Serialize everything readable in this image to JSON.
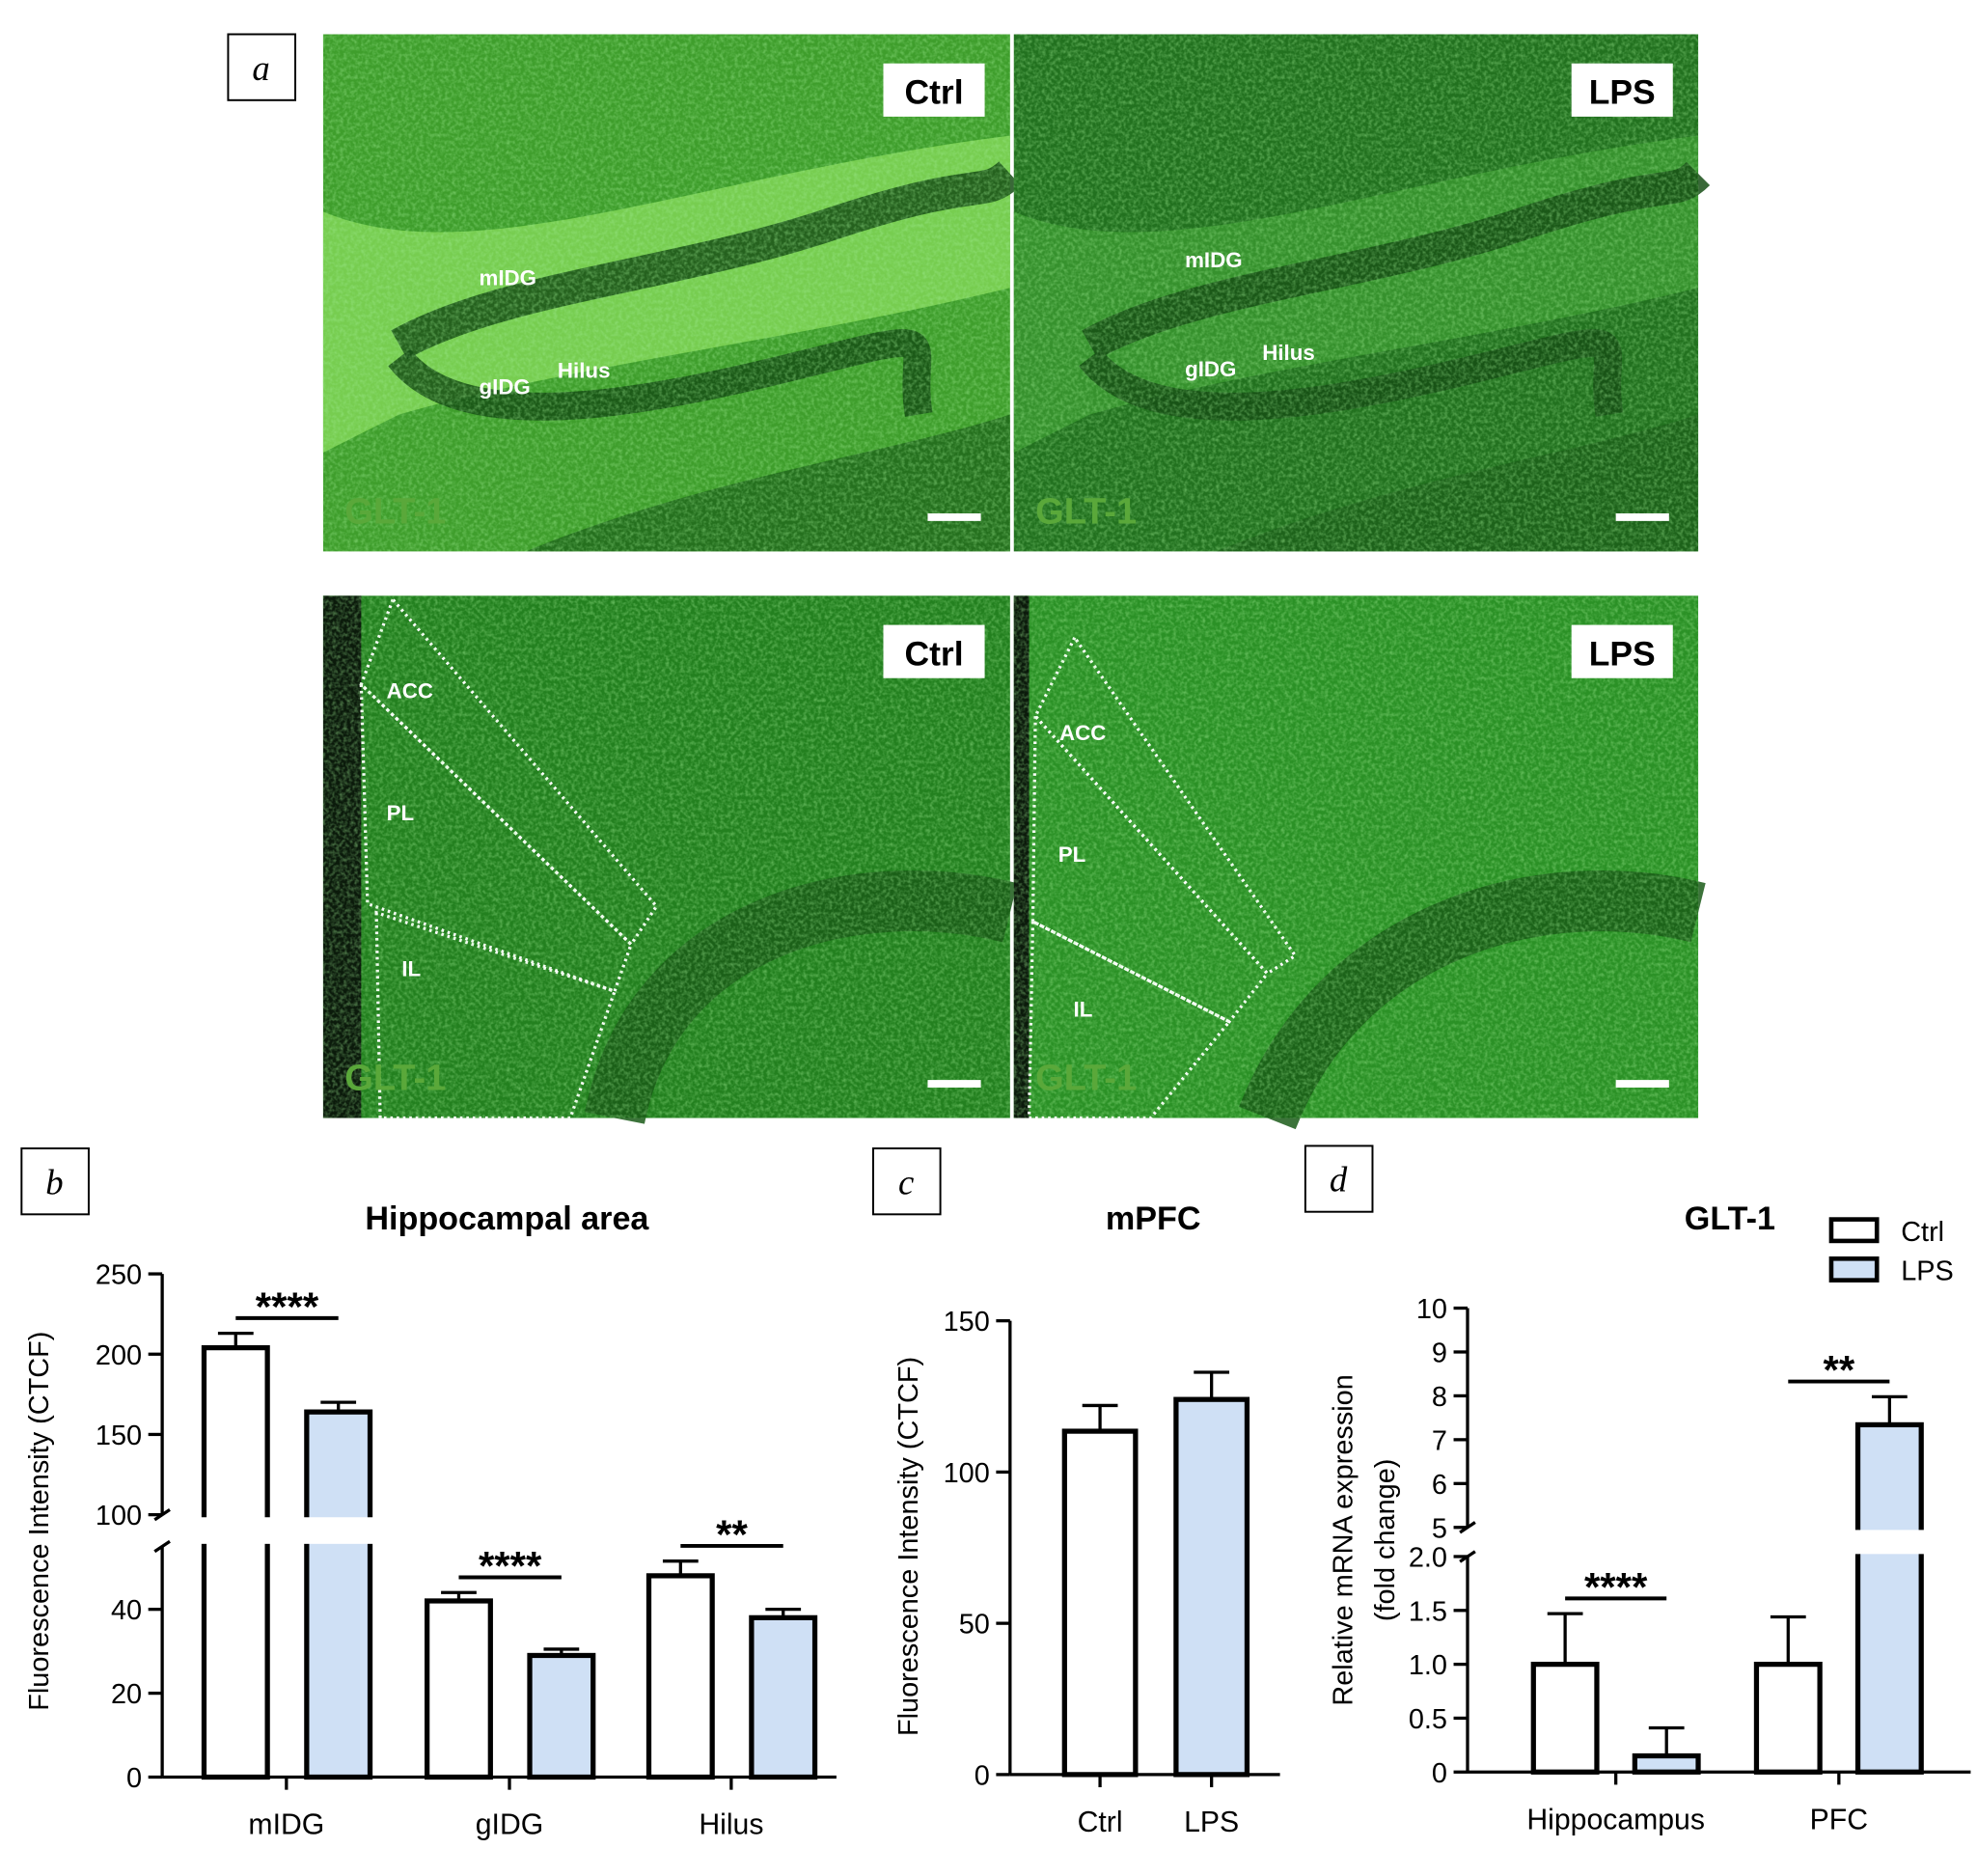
{
  "images": {
    "label": "a",
    "panels": [
      {
        "condition": "Ctrl",
        "stain": "GLT-1",
        "regions": [
          "mIDG",
          "gIDG",
          "Hilus"
        ]
      },
      {
        "condition": "LPS",
        "stain": "GLT-1",
        "regions": [
          "mIDG",
          "gIDG",
          "Hilus"
        ]
      },
      {
        "condition": "Ctrl",
        "stain": "GLT-1",
        "regions": [
          "ACC",
          "PL",
          "IL"
        ]
      },
      {
        "condition": "LPS",
        "stain": "GLT-1",
        "regions": [
          "ACC",
          "PL",
          "IL"
        ]
      }
    ]
  },
  "chart_data": [
    {
      "type": "bar",
      "panel_label": "b",
      "title": "Hippocampal area",
      "ylabel": "Fluorescence Intensity (CTCF)",
      "categories": [
        "mIDG",
        "gIDG",
        "Hilus"
      ],
      "series": [
        {
          "color": "#ffffff",
          "values": [
            204,
            42,
            48
          ],
          "errors": [
            9,
            2,
            3.5
          ]
        },
        {
          "color": "#cfe0f5",
          "values": [
            164,
            29,
            38
          ],
          "errors": [
            6,
            1.5,
            2
          ]
        }
      ],
      "ylim": [
        0,
        250
      ],
      "ybreak": [
        55,
        100
      ],
      "yticks": [
        0,
        20,
        40,
        100,
        150,
        200,
        250
      ],
      "significance": [
        "****",
        "****",
        "**"
      ]
    },
    {
      "type": "bar",
      "panel_label": "c",
      "title": "mPFC",
      "ylabel": "Fluorescence Intensity (CTCF)",
      "categories": [
        "Ctrl",
        "LPS"
      ],
      "series": [
        {
          "colors": [
            "#ffffff",
            "#cfe0f5"
          ],
          "values": [
            113.5,
            124
          ],
          "errors": [
            8.5,
            9
          ]
        }
      ],
      "ylim": [
        0,
        150
      ],
      "yticks": [
        0,
        50,
        100,
        150
      ]
    },
    {
      "type": "bar",
      "panel_label": "d",
      "title": "GLT-1",
      "ylabel": [
        "Relative mRNA expression",
        "(fold change)"
      ],
      "categories": [
        "Hippocampus",
        "PFC"
      ],
      "series": [
        {
          "name": "Ctrl",
          "color": "#ffffff",
          "values": [
            1,
            1
          ],
          "errors": [
            0.47,
            0.44
          ]
        },
        {
          "name": "LPS",
          "color": "#cfe0f5",
          "values": [
            0.15,
            7.34
          ],
          "errors": [
            0.26,
            0.64
          ]
        }
      ],
      "ylim": [
        0,
        10
      ],
      "ybreak": [
        2,
        5
      ],
      "yticks": [
        0,
        0.5,
        {
          "value": 1,
          "label": "1.0"
        },
        1.5,
        {
          "value": 2,
          "label": "2.0"
        },
        5,
        6,
        7,
        8,
        9,
        10
      ],
      "significance": [
        "****",
        "**"
      ],
      "legend": "upper right"
    }
  ]
}
